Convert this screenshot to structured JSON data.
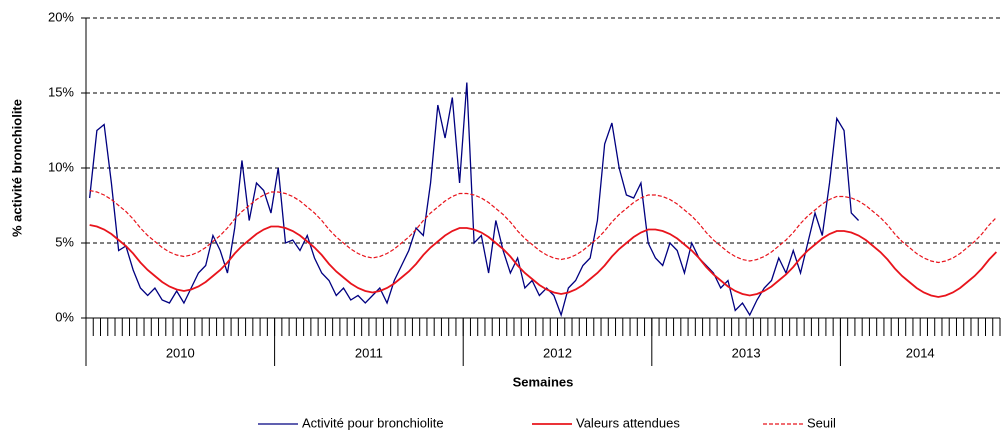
{
  "chart_data": {
    "type": "line",
    "y_label": "% activité bronchiolite",
    "x_label": "Semaines",
    "categories": [
      null,
      null,
      null,
      null,
      null,
      null,
      null,
      null,
      null,
      null,
      null,
      null,
      null,
      null,
      null,
      null,
      null,
      null,
      null,
      null,
      null,
      null,
      null,
      null,
      null,
      null,
      null,
      null,
      null,
      null,
      null,
      null,
      null,
      null,
      null,
      null,
      null,
      null,
      null,
      null,
      null,
      null,
      null,
      null,
      null,
      null,
      null,
      null,
      null,
      null,
      null,
      null,
      null,
      null,
      null,
      null,
      null,
      null,
      null,
      null,
      null,
      null,
      null,
      null,
      null,
      null,
      null,
      null,
      null,
      null,
      null,
      null,
      null,
      null,
      null,
      null,
      null,
      null,
      null,
      null,
      null,
      null,
      null,
      null,
      null,
      null,
      null,
      null,
      null,
      null,
      null,
      null,
      null,
      null,
      null,
      null,
      null,
      null,
      null,
      null,
      null,
      null,
      null,
      null,
      null,
      null,
      null,
      null,
      null,
      null,
      null,
      null,
      null,
      null,
      null,
      null,
      null,
      null,
      null,
      null,
      null,
      null,
      null,
      null,
      null,
      null
    ],
    "x_group_labels": [
      "2010",
      "2011",
      "2012",
      "2013",
      "2014"
    ],
    "ylim": [
      0,
      20
    ],
    "yticks": [
      {
        "value": 0,
        "label": "0%"
      },
      {
        "value": 5,
        "label": "5%"
      },
      {
        "value": 10,
        "label": "10%"
      },
      {
        "value": 15,
        "label": "15%"
      },
      {
        "value": 20,
        "label": "20%"
      }
    ],
    "grid": true,
    "legend": "bottom",
    "series": [
      {
        "name": "Activité pour bronchiolite",
        "color": "#000080",
        "line_style": "solid",
        "values": [
          8.0,
          12.5,
          12.9,
          9.0,
          4.5,
          4.8,
          3.2,
          2.0,
          1.5,
          2.0,
          1.2,
          1.0,
          1.8,
          1.0,
          2.0,
          3.0,
          3.5,
          5.5,
          4.5,
          3.0,
          6.0,
          10.5,
          6.5,
          9.0,
          8.5,
          7.0,
          10.0,
          5.0,
          5.2,
          4.5,
          5.5,
          4.0,
          3.0,
          2.5,
          1.5,
          2.0,
          1.2,
          1.5,
          1.0,
          1.5,
          2.0,
          1.0,
          2.5,
          3.5,
          4.5,
          6.0,
          5.5,
          9.0,
          14.2,
          12.0,
          14.7,
          9.0,
          15.7,
          5.0,
          5.5,
          3.0,
          6.5,
          4.5,
          3.0,
          4.0,
          2.0,
          2.5,
          1.5,
          2.0,
          1.5,
          0.2,
          2.0,
          2.5,
          3.5,
          4.0,
          6.5,
          11.6,
          13.0,
          10.0,
          8.2,
          8.0,
          9.0,
          5.0,
          4.0,
          3.5,
          5.0,
          4.5,
          3.0,
          5.0,
          4.0,
          3.5,
          3.0,
          2.0,
          2.5,
          0.5,
          1.0,
          0.2,
          1.2,
          2.0,
          2.5,
          4.0,
          3.0,
          4.5,
          3.0,
          5.0,
          7.0,
          5.5,
          9.0,
          13.3,
          12.5,
          7.0,
          6.5,
          null,
          null,
          null,
          null,
          null,
          null,
          null,
          null,
          null,
          null,
          null,
          null,
          null,
          null,
          null,
          null,
          null,
          null,
          null
        ]
      },
      {
        "name": "Valeurs attendues",
        "color": "#e8141c",
        "line_style": "solid",
        "values": [
          6.2,
          6.1,
          5.9,
          5.6,
          5.2,
          4.8,
          4.3,
          3.7,
          3.2,
          2.8,
          2.4,
          2.1,
          1.9,
          1.8,
          1.9,
          2.1,
          2.4,
          2.8,
          3.2,
          3.7,
          4.3,
          4.8,
          5.2,
          5.6,
          5.9,
          6.1,
          6.1,
          6.0,
          5.8,
          5.5,
          5.1,
          4.7,
          4.2,
          3.6,
          3.1,
          2.7,
          2.3,
          2.0,
          1.8,
          1.7,
          1.8,
          2.0,
          2.3,
          2.7,
          3.1,
          3.6,
          4.2,
          4.7,
          5.1,
          5.5,
          5.8,
          6.0,
          6.0,
          5.9,
          5.7,
          5.4,
          5.0,
          4.6,
          4.1,
          3.5,
          3.0,
          2.6,
          2.2,
          1.9,
          1.7,
          1.6,
          1.7,
          1.9,
          2.2,
          2.6,
          3.0,
          3.5,
          4.1,
          4.6,
          5.0,
          5.4,
          5.7,
          5.9,
          5.9,
          5.8,
          5.6,
          5.3,
          4.9,
          4.5,
          4.0,
          3.4,
          2.9,
          2.5,
          2.1,
          1.8,
          1.6,
          1.5,
          1.6,
          1.8,
          2.1,
          2.5,
          2.9,
          3.4,
          4.0,
          4.5,
          4.9,
          5.3,
          5.6,
          5.8,
          5.8,
          5.7,
          5.5,
          5.2,
          4.8,
          4.4,
          3.9,
          3.3,
          2.8,
          2.4,
          2.0,
          1.7,
          1.5,
          1.4,
          1.5,
          1.7,
          2.0,
          2.4,
          2.8,
          3.3,
          3.9,
          4.4
        ]
      },
      {
        "name": "Seuil",
        "color": "#e8141c",
        "line_style": "dashed",
        "values": [
          8.5,
          8.4,
          8.2,
          7.9,
          7.5,
          7.1,
          6.6,
          6.0,
          5.5,
          5.1,
          4.7,
          4.4,
          4.2,
          4.1,
          4.2,
          4.4,
          4.7,
          5.1,
          5.5,
          6.0,
          6.6,
          7.1,
          7.5,
          7.9,
          8.2,
          8.4,
          8.4,
          8.3,
          8.1,
          7.8,
          7.4,
          7.0,
          6.5,
          5.9,
          5.4,
          5.0,
          4.6,
          4.3,
          4.1,
          4.0,
          4.1,
          4.3,
          4.6,
          5.0,
          5.4,
          5.9,
          6.5,
          7.0,
          7.4,
          7.8,
          8.1,
          8.3,
          8.3,
          8.2,
          8.0,
          7.7,
          7.3,
          6.9,
          6.4,
          5.8,
          5.3,
          4.9,
          4.5,
          4.2,
          4.0,
          3.9,
          4.0,
          4.2,
          4.5,
          4.9,
          5.3,
          5.8,
          6.4,
          6.9,
          7.3,
          7.7,
          8.0,
          8.2,
          8.2,
          8.1,
          7.9,
          7.6,
          7.2,
          6.8,
          6.3,
          5.7,
          5.2,
          4.8,
          4.4,
          4.1,
          3.9,
          3.8,
          3.9,
          4.1,
          4.4,
          4.8,
          5.2,
          5.7,
          6.3,
          6.8,
          7.2,
          7.6,
          7.9,
          8.1,
          8.1,
          8.0,
          7.8,
          7.5,
          7.1,
          6.7,
          6.2,
          5.6,
          5.1,
          4.7,
          4.3,
          4.0,
          3.8,
          3.7,
          3.8,
          4.0,
          4.3,
          4.7,
          5.1,
          5.6,
          6.2,
          6.7
        ]
      }
    ]
  }
}
